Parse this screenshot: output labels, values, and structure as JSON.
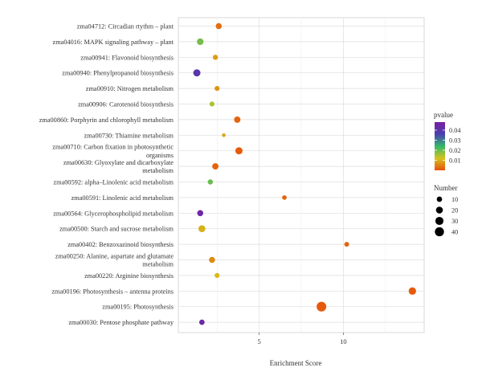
{
  "chart_data": {
    "type": "scatter",
    "title": "",
    "xlabel": "Enrichment Score",
    "ylabel": "",
    "xlim": [
      0.2,
      14.8
    ],
    "xticks": [
      5,
      10
    ],
    "grid": true,
    "legend_position": "right",
    "categories": [
      "zma04712: Circadian rtythm – plant",
      "zma04016: MAPK signaling pathway – plant",
      "zma00941: Flavonoid biosynthesis",
      "zma00940: Phenylpropanoid biosynthesis",
      "zma00910: Nitrogen metabolism",
      "zma00906: Carotenoid biosynthesis",
      "zma00860: Porphyrin and chlorophyll metabolism",
      "zma00730: Thiamine metabolism",
      "zma00710: Carbon fixation in photosynthetic organisms",
      "zma00630: Glyoxylate and dicarboxylate metabolism",
      "zma00592: alpha–Linolenic acid metabolism",
      "zma00591: Linolenic acid metabolism",
      "zma00564: Glycerophospholipid metabolism",
      "zma00500: Starch and sucrose metabolism",
      "zma00402: Benzoxazinoid biosynthesis",
      "zma00250: Alanine, aspartate and glutamate metabolism",
      "zma00220: Arginine biosynthesis",
      "zma00196: Photosynthesis – antenna proteins",
      "zma00195: Photosynthesis",
      "zma00030: Pentose phosphate pathway"
    ],
    "points": [
      {
        "enrichment": 2.6,
        "pvalue": 0.003,
        "number": 14
      },
      {
        "enrichment": 1.5,
        "pvalue": 0.019,
        "number": 18
      },
      {
        "enrichment": 2.4,
        "pvalue": 0.008,
        "number": 9
      },
      {
        "enrichment": 1.3,
        "pvalue": 0.04,
        "number": 22
      },
      {
        "enrichment": 2.5,
        "pvalue": 0.007,
        "number": 8
      },
      {
        "enrichment": 2.2,
        "pvalue": 0.015,
        "number": 8
      },
      {
        "enrichment": 3.7,
        "pvalue": 0.002,
        "number": 16
      },
      {
        "enrichment": 2.9,
        "pvalue": 0.009,
        "number": 3
      },
      {
        "enrichment": 3.8,
        "pvalue": 0.001,
        "number": 22
      },
      {
        "enrichment": 2.4,
        "pvalue": 0.002,
        "number": 16
      },
      {
        "enrichment": 2.1,
        "pvalue": 0.02,
        "number": 9
      },
      {
        "enrichment": 6.5,
        "pvalue": 0.002,
        "number": 6
      },
      {
        "enrichment": 1.5,
        "pvalue": 0.045,
        "number": 14
      },
      {
        "enrichment": 1.6,
        "pvalue": 0.01,
        "number": 20
      },
      {
        "enrichment": 10.2,
        "pvalue": 0.002,
        "number": 7
      },
      {
        "enrichment": 2.2,
        "pvalue": 0.006,
        "number": 14
      },
      {
        "enrichment": 2.5,
        "pvalue": 0.011,
        "number": 8
      },
      {
        "enrichment": 14.1,
        "pvalue": 0.001,
        "number": 24
      },
      {
        "enrichment": 8.7,
        "pvalue": 0.001,
        "number": 46
      },
      {
        "enrichment": 1.6,
        "pvalue": 0.044,
        "number": 10
      }
    ],
    "color_legend": {
      "title": "pvalue",
      "ticks": [
        0.04,
        0.03,
        0.02,
        0.01
      ],
      "range": [
        0.0,
        0.048
      ],
      "colors": [
        "#e8500a",
        "#d4c41c",
        "#33b86a",
        "#4a40b0",
        "#7a1fa2"
      ]
    },
    "size_legend": {
      "title": "Number",
      "values": [
        10,
        20,
        30,
        40
      ]
    }
  }
}
